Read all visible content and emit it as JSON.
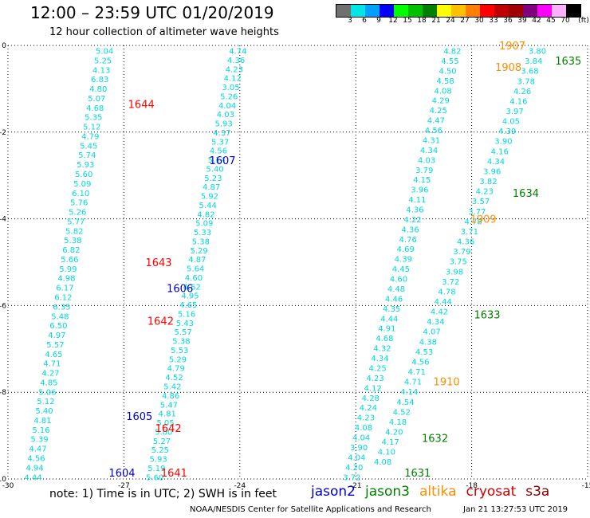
{
  "header": {
    "title": "12:00 – 23:59 UTC 01/20/2019",
    "subtitle": "12 hour collection of altimeter wave heights"
  },
  "colorbar": {
    "colors": [
      "#707070",
      "#00e5e5",
      "#00a0ff",
      "#0000ff",
      "#00ff00",
      "#00c000",
      "#008000",
      "#ffff00",
      "#ffc000",
      "#ff8000",
      "#ff0000",
      "#c00000",
      "#a00000",
      "#800080",
      "#ff00ff",
      "#ffb0ff",
      "#000000"
    ],
    "labels": [
      "3",
      "6",
      "9",
      "12",
      "15",
      "18",
      "21",
      "24",
      "27",
      "30",
      "33",
      "36",
      "39",
      "42",
      "45",
      "70",
      "(ft)"
    ]
  },
  "note": "note: 1) Time is in UTC; 2) SWH is in feet",
  "legend": [
    {
      "label": "jason2",
      "color": "#0000cc"
    },
    {
      "label": "jason3",
      "color": "#008000"
    },
    {
      "label": "altika",
      "color": "#ff8c00"
    },
    {
      "label": "cryosat",
      "color": "#cc0000"
    },
    {
      "label": "s3a",
      "color": "#800000"
    }
  ],
  "footer": {
    "left": "NOAA/NESDIS Center for Satellite Applications and Research",
    "right": "Jan 21 13:27:53 UTC 2019"
  },
  "chart_data": {
    "type": "scatter",
    "xlim": [
      -30,
      -15
    ],
    "ylim": [
      -10,
      0
    ],
    "x_ticks": [
      -30,
      -27,
      -24,
      -21,
      -18,
      -15
    ],
    "y_ticks": [
      0,
      -2,
      -4,
      -6,
      -8,
      -10
    ],
    "grid": true,
    "point_color": "#00d8d8",
    "tracks": [
      {
        "values": [
          "5.04",
          "5.25",
          "4.13",
          "6.83",
          "4.80",
          "5.07",
          "4.68",
          "5.35",
          "5.12",
          "4.79",
          "5.45",
          "5.74",
          "5.93",
          "5.60",
          "5.09",
          "6.10",
          "5.76",
          "5.26",
          "5.77",
          "5.82",
          "5.38",
          "6.82",
          "5.66",
          "5.99",
          "4.98",
          "6.17",
          "6.12",
          "6.35",
          "5.48",
          "6.50",
          "4.97",
          "5.57",
          "4.65",
          "4.71",
          "4.27",
          "4.85",
          "5.06",
          "5.12",
          "5.40",
          "4.81",
          "5.16",
          "5.39",
          "4.47",
          "4.56",
          "4.94",
          "4.44"
        ],
        "start": [
          -27.5,
          -0.12
        ],
        "end": [
          -29.35,
          -9.95
        ]
      },
      {
        "values": [
          "4.74",
          "4.36",
          "4.23",
          "4.12",
          "3.05",
          "5.26",
          "4.04",
          "4.03",
          "5.93",
          "4.37",
          "5.37",
          "4.56",
          "5.14",
          "5.40",
          "5.23",
          "4.87",
          "5.92",
          "5.44",
          "4.82",
          "5.09",
          "5.33",
          "5.38",
          "5.29",
          "4.87",
          "5.64",
          "4.60",
          "4.62",
          "4.95",
          "4.65",
          "5.16",
          "5.43",
          "5.57",
          "5.38",
          "5.53",
          "5.29",
          "4.79",
          "4.52",
          "5.42",
          "4.86",
          "5.47",
          "4.81",
          "5.05",
          "5.00",
          "5.27",
          "5.25",
          "5.93",
          "5.19",
          "5.60"
        ],
        "start": [
          -24.05,
          -0.12
        ],
        "end": [
          -26.2,
          -9.95
        ]
      },
      {
        "values": [
          "4.82",
          "4.55",
          "4.50",
          "4.58",
          "4.08",
          "4.29",
          "4.25",
          "4.47",
          "4.56",
          "4.31",
          "4.34",
          "4.03",
          "3.79",
          "4.15",
          "3.96",
          "4.11",
          "4.36",
          "4.22",
          "4.36",
          "4.76",
          "4.69",
          "4.39",
          "4.45",
          "4.60",
          "4.48",
          "4.46",
          "4.35",
          "4.44",
          "4.91",
          "4.68",
          "4.32",
          "4.34",
          "4.25",
          "4.23",
          "4.12",
          "4.28",
          "4.24",
          "4.23",
          "4.08",
          "4.04",
          "3.90",
          "4.04",
          "4.20",
          "3.72"
        ],
        "start": [
          -18.5,
          -0.12
        ],
        "end": [
          -21.1,
          -9.95
        ]
      },
      {
        "values": [
          "3.80",
          "3.84",
          "3.68",
          "3.78",
          "4.26",
          "4.16",
          "3.97",
          "4.05",
          "4.39",
          "3.90",
          "4.16",
          "4.34",
          "3.96",
          "3.82",
          "4.23",
          "3.57",
          "3.77",
          "4.78",
          "3.71",
          "4.36",
          "3.79",
          "3.75",
          "3.98",
          "3.72",
          "4.78",
          "4.44",
          "4.42",
          "4.34",
          "4.07",
          "4.38",
          "4.53",
          "4.56",
          "4.71",
          "4.71",
          "4.14",
          "4.54",
          "4.52",
          "4.18",
          "4.20",
          "4.17",
          "4.10",
          "4.08"
        ],
        "start": [
          -16.3,
          -0.12
        ],
        "end": [
          -20.3,
          -9.6
        ]
      }
    ],
    "pass_labels": [
      {
        "text": "1644",
        "x": -26.55,
        "y": -1.35,
        "color": "#ff0000"
      },
      {
        "text": "1607",
        "x": -24.45,
        "y": -2.65,
        "color": "#0000cc"
      },
      {
        "text": "1643",
        "x": -26.1,
        "y": -5.0,
        "color": "#ff0000"
      },
      {
        "text": "1606",
        "x": -25.55,
        "y": -5.6,
        "color": "#0000cc"
      },
      {
        "text": "1642",
        "x": -26.05,
        "y": -6.35,
        "color": "#ff0000"
      },
      {
        "text": "1605",
        "x": -26.6,
        "y": -8.55,
        "color": "#0000cc"
      },
      {
        "text": "1642",
        "x": -25.85,
        "y": -8.82,
        "color": "#ff0000"
      },
      {
        "text": "1604",
        "x": -27.05,
        "y": -9.85,
        "color": "#0000cc"
      },
      {
        "text": "1641",
        "x": -25.7,
        "y": -9.85,
        "color": "#ff0000"
      },
      {
        "text": "1907",
        "x": -16.95,
        "y": 0.0,
        "color": "#ff8c00"
      },
      {
        "text": "1908",
        "x": -17.05,
        "y": -0.5,
        "color": "#ff8c00"
      },
      {
        "text": "1635",
        "x": -15.5,
        "y": -0.35,
        "color": "#008000"
      },
      {
        "text": "1634",
        "x": -16.6,
        "y": -3.4,
        "color": "#008000"
      },
      {
        "text": "1909",
        "x": -17.7,
        "y": -4.0,
        "color": "#ff8c00"
      },
      {
        "text": "1633",
        "x": -17.6,
        "y": -6.2,
        "color": "#008000"
      },
      {
        "text": "1910",
        "x": -18.65,
        "y": -7.75,
        "color": "#ff8c00"
      },
      {
        "text": "1632",
        "x": -18.95,
        "y": -9.05,
        "color": "#008000"
      },
      {
        "text": "1631",
        "x": -19.4,
        "y": -9.85,
        "color": "#008000"
      }
    ]
  }
}
